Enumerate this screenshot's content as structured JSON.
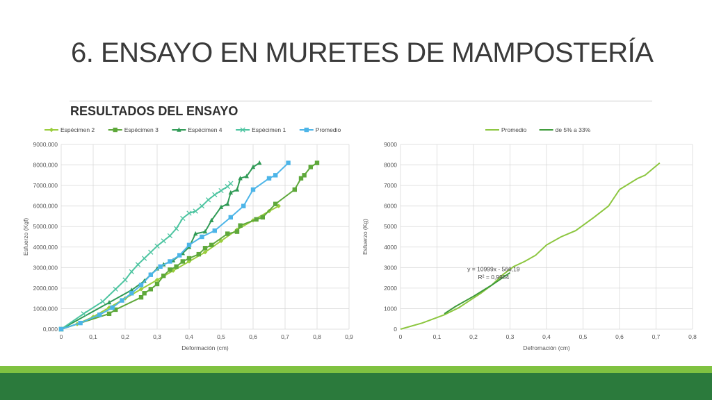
{
  "slide": {
    "title": "6. ENSAYO EN MURETES DE MAMPOSTERÍA",
    "subtitle": "RESULTADOS DEL ENSAYO"
  },
  "colors": {
    "footer_light": "#7fc241",
    "footer_dark": "#2b7a3c"
  },
  "chart_data": [
    {
      "type": "line",
      "title": "",
      "xlabel": "Deformación (cm)",
      "ylabel": "Esfuerzo (Kgf)",
      "xlim": [
        0,
        0.9
      ],
      "ylim": [
        0,
        9000000
      ],
      "xticks": [
        "0",
        "0,1",
        "0,2",
        "0,3",
        "0,4",
        "0,5",
        "0,6",
        "0,7",
        "0,8",
        "0,9"
      ],
      "yticks": [
        "0,000",
        "1000,000",
        "2000,000",
        "3000,000",
        "4000,000",
        "5000,000",
        "6000,000",
        "7000,000",
        "8000,000",
        "9000,000"
      ],
      "grid": true,
      "legend_position": "top",
      "series": [
        {
          "name": "Espécimen 2",
          "color": "#9acd3c",
          "marker": "diamond",
          "x": [
            0,
            0.05,
            0.1,
            0.15,
            0.2,
            0.25,
            0.3,
            0.35,
            0.4,
            0.45,
            0.5,
            0.55,
            0.6,
            0.65,
            0.68
          ],
          "y": [
            0,
            250000,
            600000,
            1050000,
            1500000,
            1950000,
            2400000,
            2850000,
            3300000,
            3750000,
            4300000,
            4850000,
            5300000,
            5750000,
            6000000
          ]
        },
        {
          "name": "Espécimen 3",
          "color": "#5ea83a",
          "marker": "square",
          "x": [
            0,
            0.15,
            0.17,
            0.25,
            0.26,
            0.28,
            0.3,
            0.32,
            0.34,
            0.36,
            0.38,
            0.4,
            0.43,
            0.45,
            0.47,
            0.52,
            0.55,
            0.56,
            0.61,
            0.63,
            0.67,
            0.73,
            0.75,
            0.76,
            0.78,
            0.8
          ],
          "y": [
            0,
            750000,
            950000,
            1550000,
            1750000,
            1950000,
            2200000,
            2600000,
            2900000,
            3050000,
            3300000,
            3450000,
            3650000,
            3950000,
            4100000,
            4650000,
            4750000,
            5050000,
            5350000,
            5450000,
            6100000,
            6800000,
            7350000,
            7500000,
            7900000,
            8100000
          ]
        },
        {
          "name": "Espécimen 4",
          "color": "#2f9a55",
          "marker": "triangle",
          "x": [
            0,
            0.15,
            0.22,
            0.26,
            0.28,
            0.3,
            0.32,
            0.35,
            0.38,
            0.4,
            0.42,
            0.45,
            0.47,
            0.5,
            0.52,
            0.53,
            0.55,
            0.56,
            0.58,
            0.6,
            0.62
          ],
          "y": [
            0,
            1300000,
            1900000,
            2350000,
            2650000,
            2950000,
            3150000,
            3350000,
            3700000,
            4000000,
            4650000,
            4750000,
            5300000,
            5950000,
            6100000,
            6650000,
            6800000,
            7350000,
            7450000,
            7900000,
            8100000
          ]
        },
        {
          "name": "Espécimen 1",
          "color": "#4cc4a0",
          "marker": "x",
          "x": [
            0,
            0.07,
            0.13,
            0.17,
            0.2,
            0.22,
            0.24,
            0.26,
            0.28,
            0.3,
            0.32,
            0.34,
            0.36,
            0.38,
            0.4,
            0.42,
            0.44,
            0.46,
            0.48,
            0.5,
            0.52,
            0.53
          ],
          "y": [
            0,
            750000,
            1350000,
            1950000,
            2400000,
            2800000,
            3150000,
            3450000,
            3750000,
            4050000,
            4300000,
            4550000,
            4900000,
            5400000,
            5650000,
            5750000,
            6000000,
            6300000,
            6550000,
            6750000,
            6950000,
            7100000
          ]
        },
        {
          "name": "Promedio",
          "color": "#4db5e8",
          "marker": "square",
          "x": [
            0,
            0.06,
            0.12,
            0.16,
            0.19,
            0.22,
            0.25,
            0.28,
            0.31,
            0.34,
            0.37,
            0.4,
            0.44,
            0.48,
            0.53,
            0.57,
            0.6,
            0.65,
            0.67,
            0.71
          ],
          "y": [
            0,
            300000,
            700000,
            1050000,
            1400000,
            1750000,
            2150000,
            2650000,
            3050000,
            3300000,
            3600000,
            4100000,
            4500000,
            4800000,
            5450000,
            6000000,
            6800000,
            7350000,
            7500000,
            8100000
          ]
        }
      ]
    },
    {
      "type": "line",
      "title": "",
      "xlabel": "Defromación (cm)",
      "ylabel": "Esfuerzo (Kg)",
      "xlim": [
        0,
        0.8
      ],
      "ylim": [
        0,
        9000
      ],
      "xticks": [
        "0",
        "0,1",
        "0,2",
        "0,3",
        "0,4",
        "0,5",
        "0,6",
        "0,7",
        "0,8"
      ],
      "yticks": [
        "0",
        "1000",
        "2000",
        "3000",
        "4000",
        "5000",
        "6000",
        "7000",
        "8000",
        "9000"
      ],
      "grid": true,
      "legend_position": "top",
      "annotations": {
        "equation": "y = 10999x - 566,19",
        "r2": "R² = 0,9954"
      },
      "series": [
        {
          "name": "Promedio",
          "color": "#8cc63f",
          "marker": "none",
          "x": [
            0,
            0.06,
            0.12,
            0.16,
            0.19,
            0.22,
            0.25,
            0.28,
            0.31,
            0.34,
            0.37,
            0.4,
            0.44,
            0.48,
            0.53,
            0.57,
            0.6,
            0.65,
            0.67,
            0.71
          ],
          "y": [
            0,
            300,
            700,
            1050,
            1400,
            1750,
            2150,
            2650,
            3050,
            3300,
            3600,
            4100,
            4500,
            4800,
            5450,
            6000,
            6800,
            7350,
            7500,
            8100
          ]
        },
        {
          "name": "de 5% a 33%",
          "color": "#3e9b3a",
          "marker": "none",
          "x": [
            0.12,
            0.15,
            0.2,
            0.25,
            0.3
          ],
          "y": [
            750,
            1100,
            1600,
            2150,
            2750
          ]
        }
      ]
    }
  ]
}
